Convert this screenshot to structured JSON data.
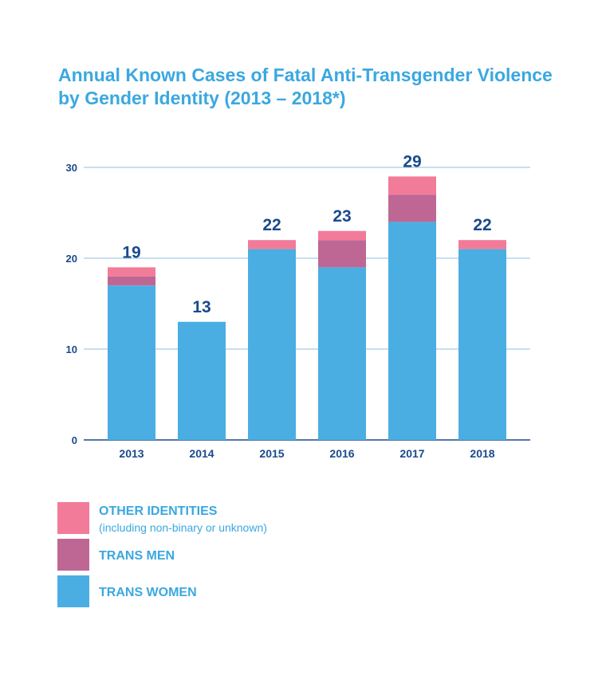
{
  "chart_data": {
    "type": "bar",
    "stacked": true,
    "title": "Annual Known Cases of Fatal Anti-Transgender Violence by Gender Identity (2013 – 2018*)",
    "categories": [
      "2013",
      "2014",
      "2015",
      "2016",
      "2017",
      "2018"
    ],
    "series": [
      {
        "name": "TRANS WOMEN",
        "color": "#4aaee3",
        "values": [
          17,
          13,
          21,
          19,
          24,
          21
        ]
      },
      {
        "name": "TRANS MEN",
        "color": "#bf6794",
        "values": [
          1,
          0,
          0,
          3,
          3,
          0
        ]
      },
      {
        "name": "OTHER IDENTITIES",
        "subtitle": "(including non-binary or unknown)",
        "color": "#f27b99",
        "values": [
          1,
          0,
          1,
          1,
          2,
          1
        ]
      }
    ],
    "totals": [
      "19",
      "13",
      "22",
      "23",
      "29",
      "22"
    ],
    "yticks": [
      "0",
      "10",
      "20",
      "30"
    ],
    "ylim": [
      0,
      30
    ],
    "grid": true,
    "legend": "bottom-left"
  }
}
